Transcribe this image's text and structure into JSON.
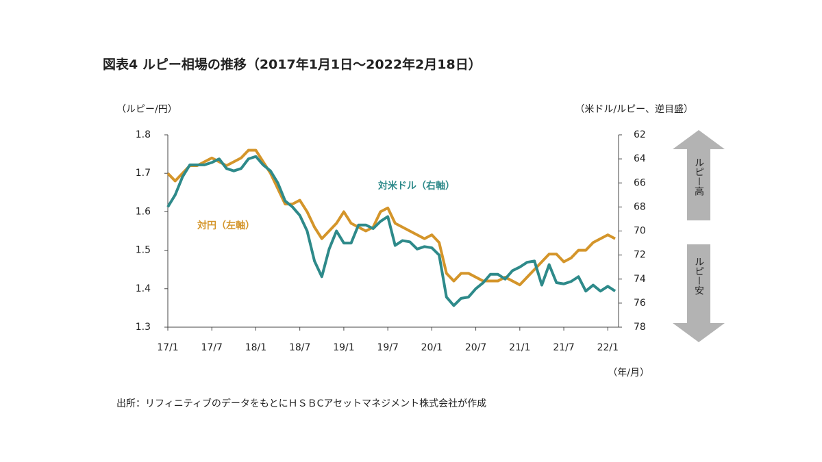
{
  "chart_data": {
    "type": "line",
    "title": "図表4 ルピー相場の推移（2017年1月1日～2022年2月18日）",
    "y_label": "（ルピー/円）",
    "y2_label": "（米ドル/ルピー、逆目盛）",
    "x_label": "（年/月）",
    "source": "出所：リフィニティブのデータをもとにＨＳＢCアセットマネジメント株式会社が作成",
    "arrow_up_label": "ルピー高",
    "arrow_down_label": "ルピー安",
    "categories": [
      "17/1",
      null,
      null,
      null,
      null,
      null,
      "17/7",
      null,
      null,
      null,
      null,
      null,
      "18/1",
      null,
      null,
      null,
      null,
      null,
      "18/7",
      null,
      null,
      null,
      null,
      null,
      "19/1",
      null,
      null,
      null,
      null,
      null,
      "19/7",
      null,
      null,
      null,
      null,
      null,
      "20/1",
      null,
      null,
      null,
      null,
      null,
      "20/7",
      null,
      null,
      null,
      null,
      null,
      "21/1",
      null,
      null,
      null,
      null,
      null,
      "21/7",
      null,
      null,
      null,
      null,
      null,
      "22/1",
      null
    ],
    "series": [
      {
        "name": "対円（左軸）",
        "color": "#d4952a",
        "axis": "y",
        "values": [
          1.7,
          1.68,
          1.7,
          1.72,
          1.72,
          1.73,
          1.74,
          1.73,
          1.72,
          1.73,
          1.74,
          1.76,
          1.76,
          1.73,
          1.7,
          1.66,
          1.62,
          1.62,
          1.63,
          1.6,
          1.56,
          1.53,
          1.55,
          1.57,
          1.6,
          1.57,
          1.56,
          1.55,
          1.56,
          1.6,
          1.61,
          1.57,
          1.56,
          1.55,
          1.54,
          1.53,
          1.54,
          1.52,
          1.44,
          1.42,
          1.44,
          1.44,
          1.43,
          1.42,
          1.42,
          1.42,
          1.43,
          1.42,
          1.41,
          1.43,
          1.45,
          1.47,
          1.49,
          1.49,
          1.47,
          1.48,
          1.5,
          1.5,
          1.52,
          1.53,
          1.54,
          1.53
        ]
      },
      {
        "name": "対米ドル（右軸）",
        "color": "#2e8a8a",
        "axis": "y2",
        "values": [
          68,
          67,
          65.5,
          64.5,
          64.5,
          64.5,
          64.3,
          64,
          64.8,
          65,
          64.8,
          64,
          63.8,
          64.5,
          65,
          66,
          67.5,
          68,
          68.7,
          70,
          72.5,
          73.8,
          71.5,
          70,
          71,
          71,
          69.5,
          69.5,
          69.8,
          69.2,
          68.8,
          71.2,
          70.8,
          70.9,
          71.5,
          71.3,
          71.4,
          72,
          75.5,
          76.2,
          75.6,
          75.5,
          74.8,
          74.3,
          73.6,
          73.6,
          74,
          73.3,
          73,
          72.6,
          72.5,
          74.5,
          72.8,
          74.3,
          74.4,
          74.2,
          73.8,
          75,
          74.5,
          75,
          74.6,
          75
        ]
      }
    ],
    "ylim": [
      1.3,
      1.8
    ],
    "yticks": [
      1.3,
      1.4,
      1.5,
      1.6,
      1.7,
      1.8
    ],
    "y2lim": [
      78,
      62
    ],
    "y2ticks": [
      62,
      64,
      66,
      68,
      70,
      72,
      74,
      76,
      78
    ]
  }
}
